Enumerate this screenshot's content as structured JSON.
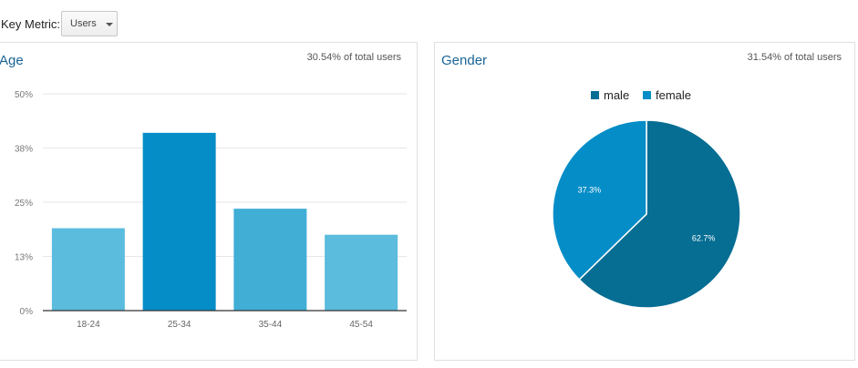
{
  "controls": {
    "key_metric_label": "Key Metric:",
    "key_metric_value": "Users"
  },
  "age_panel": {
    "title": "Age",
    "summary": "30.54% of total users"
  },
  "gender_panel": {
    "title": "Gender",
    "summary": "31.54% of total users"
  },
  "colors": {
    "bar_light": "#5bbcdd",
    "bar_dark": "#058dc7",
    "bar_mid": "#41aed6",
    "male": "#066d93",
    "female": "#058dc7"
  },
  "chart_data": [
    {
      "type": "bar",
      "title": "Age",
      "categories": [
        "18-24",
        "25-34",
        "35-44",
        "45-54"
      ],
      "values": [
        19,
        41,
        23.5,
        17.5
      ],
      "ylim": [
        0,
        50
      ],
      "yticks": [
        0,
        12.5,
        25,
        37.5,
        50
      ],
      "ytick_labels": [
        "0%",
        "13%",
        "25%",
        "38%",
        "50%"
      ],
      "grid": true,
      "xlabel": "",
      "ylabel": ""
    },
    {
      "type": "pie",
      "title": "Gender",
      "labels": [
        "male",
        "female"
      ],
      "values": [
        62.7,
        37.3
      ],
      "value_labels": [
        "62.7%",
        "37.3%"
      ],
      "legend": "top"
    }
  ]
}
